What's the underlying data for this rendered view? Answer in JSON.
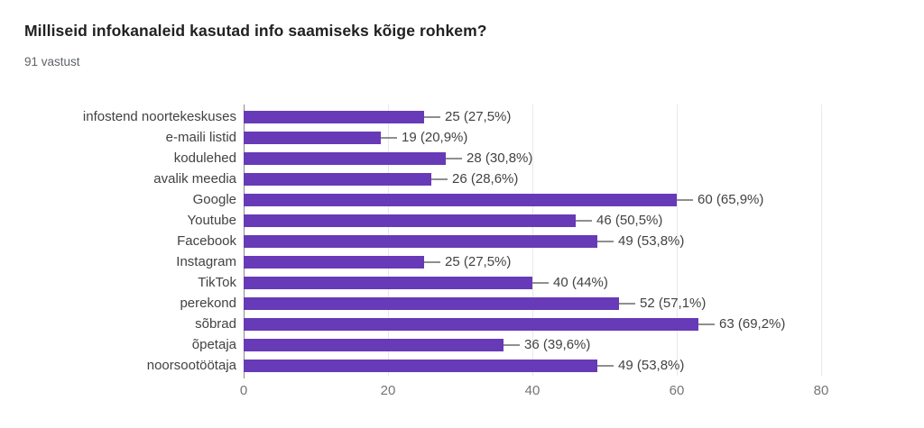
{
  "header": {
    "title": "Milliseid infokanaleid kasutad info saamiseks kõige rohkem?",
    "subtitle": "91 vastust"
  },
  "chart_data": {
    "type": "bar",
    "orientation": "horizontal",
    "title": "Milliseid infokanaleid kasutad info saamiseks kõige rohkem?",
    "subtitle": "91 vastust",
    "total_responses": 91,
    "categories": [
      "infostend noortekeskuses",
      "e-maili listid",
      "kodulehed",
      "avalik meedia",
      "Google",
      "Youtube",
      "Facebook",
      "Instagram",
      "TikTok",
      "perekond",
      "sõbrad",
      "õpetaja",
      "noorsootöötaja"
    ],
    "values": [
      25,
      19,
      28,
      26,
      60,
      46,
      49,
      25,
      40,
      52,
      63,
      36,
      49
    ],
    "value_labels": [
      "25 (27,5%)",
      "19 (20,9%)",
      "28 (30,8%)",
      "26 (28,6%)",
      "60 (65,9%)",
      "46 (50,5%)",
      "49 (53,8%)",
      "25 (27,5%)",
      "40 (44%)",
      "52 (57,1%)",
      "63 (69,2%)",
      "36 (39,6%)",
      "49 (53,8%)"
    ],
    "xlabel": "",
    "ylabel": "",
    "xlim": [
      0,
      80
    ],
    "x_ticks": [
      0,
      20,
      40,
      60,
      80
    ],
    "grid": true,
    "legend": "none"
  },
  "colors": {
    "bar": "#673ab7",
    "title_text": "#212121",
    "subtitle_text": "#5f6368",
    "label_text": "#424242",
    "tick_text": "#757575",
    "gridline": "#e8e8e8",
    "axis_line": "#8a8a8a",
    "leader_line": "#8f8f8f",
    "background": "#ffffff"
  }
}
